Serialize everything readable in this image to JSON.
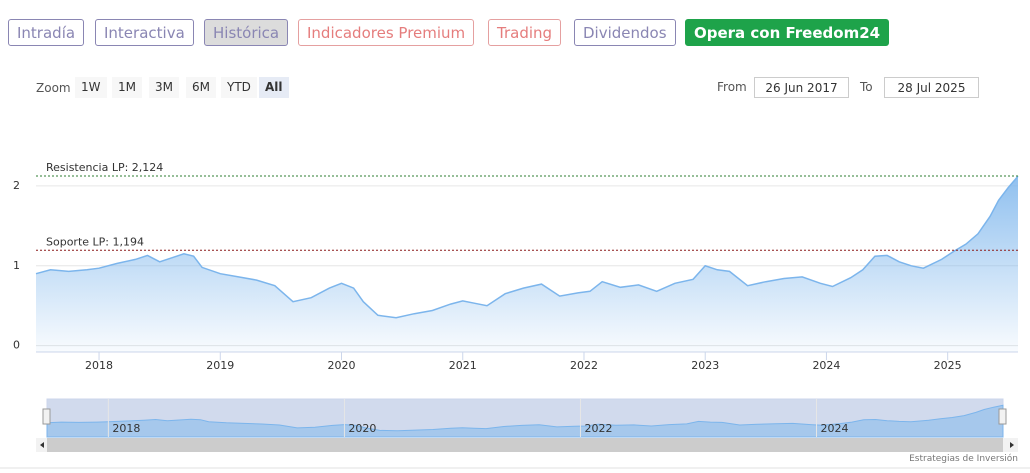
{
  "tabs": [
    "Intradía",
    "Interactiva",
    "Histórica",
    "Indicadores Premium",
    "Trading",
    "Dividendos",
    "Opera con Freedom24"
  ],
  "zoom": {
    "label": "Zoom",
    "buttons": [
      "1W",
      "1M",
      "3M",
      "6M",
      "YTD",
      "All"
    ]
  },
  "range": {
    "from_label": "From",
    "from": "26 Jun 2017",
    "to_label": "To",
    "to": "28 Jul 2025"
  },
  "footer": "Estrategias de Inversión",
  "chart_data": {
    "type": "area",
    "color": "#7cb5ec",
    "x": [
      2017.48,
      2017.6,
      2017.75,
      2017.9,
      2018.0,
      2018.15,
      2018.3,
      2018.4,
      2018.5,
      2018.6,
      2018.7,
      2018.78,
      2018.85,
      2019.0,
      2019.15,
      2019.3,
      2019.45,
      2019.6,
      2019.75,
      2019.9,
      2020.0,
      2020.1,
      2020.18,
      2020.3,
      2020.45,
      2020.6,
      2020.75,
      2020.9,
      2021.0,
      2021.1,
      2021.2,
      2021.35,
      2021.5,
      2021.65,
      2021.8,
      2021.95,
      2022.05,
      2022.15,
      2022.3,
      2022.45,
      2022.6,
      2022.75,
      2022.9,
      2023.0,
      2023.1,
      2023.2,
      2023.35,
      2023.5,
      2023.65,
      2023.8,
      2023.95,
      2024.05,
      2024.2,
      2024.3,
      2024.4,
      2024.5,
      2024.6,
      2024.7,
      2024.8,
      2024.95,
      2025.05,
      2025.15,
      2025.25,
      2025.35,
      2025.42,
      2025.5,
      2025.58
    ],
    "values": [
      0.9,
      0.95,
      0.93,
      0.95,
      0.97,
      1.03,
      1.08,
      1.13,
      1.05,
      1.1,
      1.15,
      1.12,
      0.98,
      0.9,
      0.86,
      0.82,
      0.75,
      0.55,
      0.6,
      0.72,
      0.78,
      0.72,
      0.55,
      0.38,
      0.35,
      0.4,
      0.44,
      0.52,
      0.56,
      0.53,
      0.5,
      0.65,
      0.72,
      0.77,
      0.62,
      0.66,
      0.68,
      0.8,
      0.73,
      0.76,
      0.68,
      0.78,
      0.83,
      1.0,
      0.95,
      0.93,
      0.75,
      0.8,
      0.84,
      0.86,
      0.78,
      0.74,
      0.85,
      0.95,
      1.12,
      1.13,
      1.05,
      1.0,
      0.97,
      1.08,
      1.18,
      1.27,
      1.4,
      1.62,
      1.82,
      1.98,
      2.12
    ],
    "xlim": [
      2017.48,
      2025.58
    ],
    "xticks": [
      2018,
      2019,
      2020,
      2021,
      2022,
      2023,
      2024,
      2025
    ],
    "ylim": [
      -0.08,
      2.55
    ],
    "yticks": [
      0,
      1,
      2
    ],
    "grid": true,
    "plot_lines": [
      {
        "label": "Resistencia LP: 2,124",
        "value": 2.124,
        "color": "#2e7d32"
      },
      {
        "label": "Soporte LP: 1,194",
        "value": 1.194,
        "color": "#8b1a1a"
      }
    ],
    "navigator_xticks": [
      2018,
      2020,
      2022,
      2024
    ]
  }
}
